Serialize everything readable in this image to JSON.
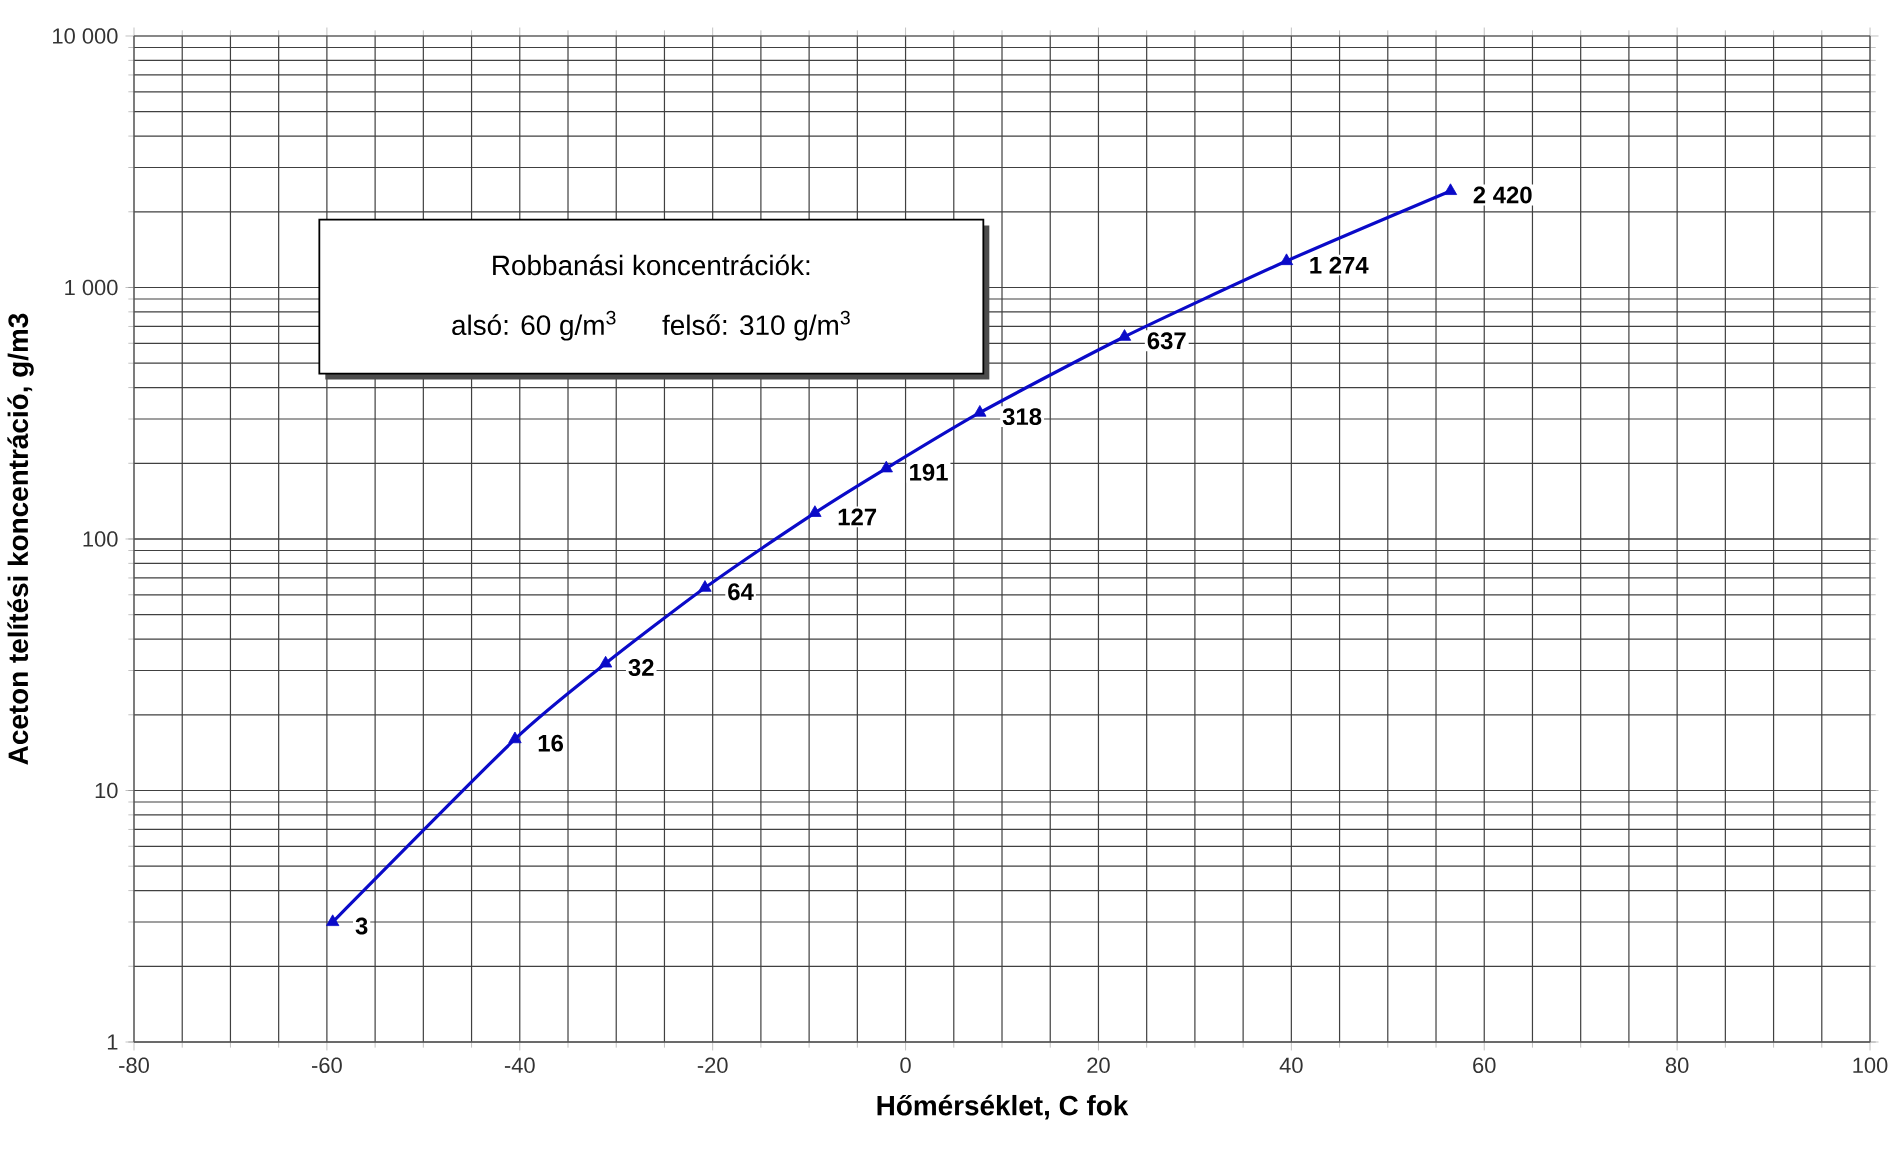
{
  "chart_data": {
    "type": "line",
    "xlabel": "Hőmérséklet, C fok",
    "ylabel": "Aceton telítési koncentráció, g/m3",
    "x": [
      -59.4,
      -40.5,
      -31.1,
      -20.8,
      -9.4,
      -2.0,
      7.7,
      22.7,
      39.5,
      56.5
    ],
    "series": [
      {
        "color": "#0a0ac8",
        "values": [
          3,
          16,
          32,
          64,
          127,
          191,
          318,
          637,
          1274,
          2420
        ],
        "value_labels": [
          "3",
          "16",
          "32",
          "64",
          "127",
          "191",
          "318",
          "637",
          "1 274",
          "2 420"
        ]
      }
    ],
    "xlim": [
      -80,
      100
    ],
    "xticks": [
      -80,
      -60,
      -40,
      -20,
      0,
      20,
      40,
      60,
      80,
      100
    ],
    "ylim": [
      1,
      10000
    ],
    "yticks": [
      1,
      10,
      100,
      {
        "value": 1000,
        "label": "1 000"
      },
      {
        "value": 10000,
        "label": "10 000"
      }
    ],
    "log": "y",
    "grid": true,
    "marker": "triangle",
    "line_style": "solid",
    "annotations": [
      "Robbanási koncentrációk:",
      "alsó: 60 g/m$^{3}$",
      "felső: 310 g/m$^{3}$"
    ]
  }
}
